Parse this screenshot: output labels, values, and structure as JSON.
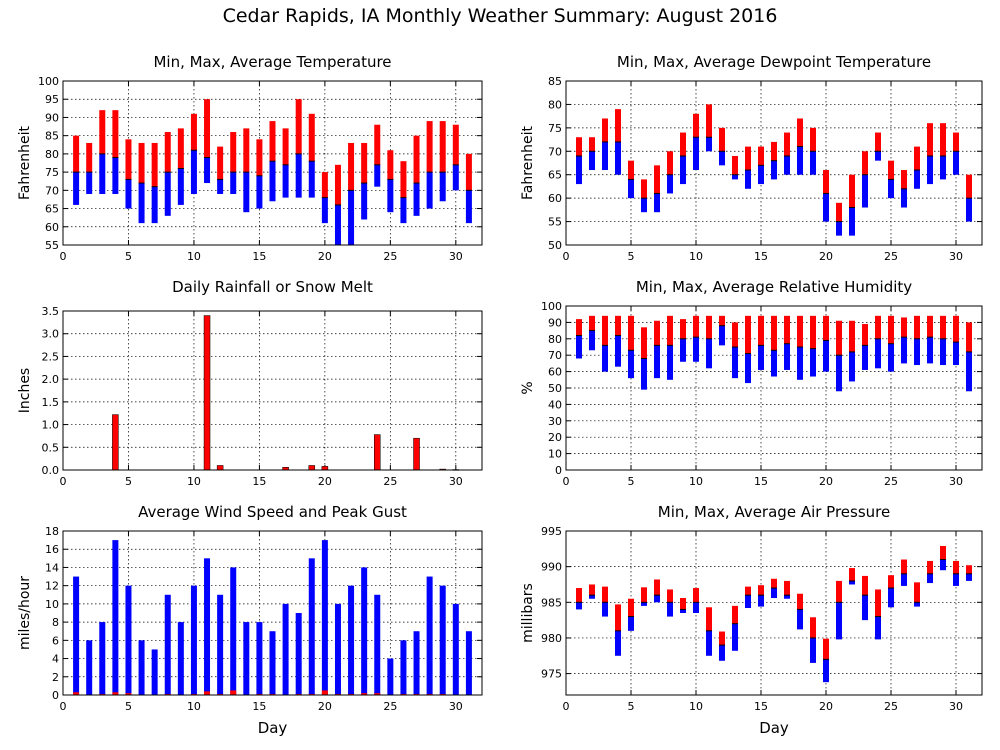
{
  "title": "Cedar Rapids, IA Monthly Weather Summary: August 2016",
  "colors": {
    "max": "#ff0000",
    "min": "#0000ff",
    "grid": "#000000",
    "avg_line": "#000000"
  },
  "chart_data": [
    {
      "type": "bar",
      "title": "Min, Max, Average Temperature",
      "ylabel": "Fahrenheit",
      "xlabel": "",
      "xlim": [
        0,
        32
      ],
      "ylim": [
        55,
        100
      ],
      "xticks": [
        0,
        5,
        10,
        15,
        20,
        25,
        30
      ],
      "yticks": [
        55,
        60,
        65,
        70,
        75,
        80,
        85,
        90,
        95,
        100
      ],
      "grid": true,
      "x": [
        1,
        2,
        3,
        4,
        5,
        6,
        7,
        8,
        9,
        10,
        11,
        12,
        13,
        14,
        15,
        16,
        17,
        18,
        19,
        20,
        21,
        22,
        23,
        24,
        25,
        26,
        27,
        28,
        29,
        30,
        31
      ],
      "series": [
        {
          "values_min": [
            66,
            69,
            69,
            69,
            65,
            61,
            61,
            63,
            66,
            69,
            72,
            69,
            69,
            64,
            65,
            67,
            68,
            68,
            68,
            61,
            55,
            55,
            62,
            71,
            64,
            61,
            63,
            65,
            67,
            70,
            61
          ]
        },
        {
          "values_max": [
            85,
            83,
            92,
            92,
            84,
            83,
            83,
            86,
            87,
            91,
            95,
            82,
            86,
            87,
            84,
            89,
            87,
            95,
            91,
            75,
            77,
            83,
            83,
            88,
            81,
            78,
            85,
            89,
            89,
            88,
            80
          ]
        },
        {
          "values_avg": [
            75,
            75,
            80,
            79,
            73,
            72,
            71,
            75,
            76,
            81,
            79,
            73,
            75,
            75,
            74,
            78,
            77,
            80,
            78,
            68,
            66,
            70,
            72,
            77,
            73,
            68,
            72,
            75,
            75,
            77,
            70
          ]
        }
      ]
    },
    {
      "type": "bar",
      "title": "Min, Max, Average Dewpoint Temperature",
      "ylabel": "Fahrenheit",
      "xlabel": "",
      "xlim": [
        0,
        32
      ],
      "ylim": [
        50,
        85
      ],
      "xticks": [
        0,
        5,
        10,
        15,
        20,
        25,
        30
      ],
      "yticks": [
        50,
        55,
        60,
        65,
        70,
        75,
        80,
        85
      ],
      "grid": true,
      "x": [
        1,
        2,
        3,
        4,
        5,
        6,
        7,
        8,
        9,
        10,
        11,
        12,
        13,
        14,
        15,
        16,
        17,
        18,
        19,
        20,
        21,
        22,
        23,
        24,
        25,
        26,
        27,
        28,
        29,
        30,
        31
      ],
      "series": [
        {
          "values_min": [
            63,
            66,
            66,
            65,
            60,
            57,
            57,
            61,
            63,
            66,
            70,
            67,
            64,
            62,
            63,
            64,
            65,
            65,
            65,
            55,
            52,
            52,
            58,
            68,
            60,
            58,
            62,
            63,
            64,
            65,
            55
          ]
        },
        {
          "values_max": [
            73,
            73,
            77,
            79,
            68,
            64,
            67,
            70,
            74,
            78,
            80,
            75,
            69,
            71,
            71,
            72,
            74,
            77,
            75,
            66,
            59,
            65,
            70,
            74,
            68,
            66,
            71,
            76,
            76,
            74,
            65
          ]
        },
        {
          "values_avg": [
            69,
            70,
            72,
            72,
            64,
            60,
            61,
            65,
            69,
            73,
            73,
            70,
            65,
            66,
            67,
            68,
            69,
            71,
            70,
            61,
            55,
            58,
            65,
            70,
            64,
            62,
            66,
            69,
            69,
            70,
            60
          ]
        }
      ]
    },
    {
      "type": "bar",
      "title": "Daily Rainfall or Snow Melt",
      "ylabel": "Inches",
      "xlabel": "",
      "xlim": [
        0,
        32
      ],
      "ylim": [
        0,
        3.5
      ],
      "xticks": [
        0,
        5,
        10,
        15,
        20,
        25,
        30
      ],
      "yticks": [
        0.0,
        0.5,
        1.0,
        1.5,
        2.0,
        2.5,
        3.0,
        3.5
      ],
      "grid": true,
      "x": [
        1,
        2,
        3,
        4,
        5,
        6,
        7,
        8,
        9,
        10,
        11,
        12,
        13,
        14,
        15,
        16,
        17,
        18,
        19,
        20,
        21,
        22,
        23,
        24,
        25,
        26,
        27,
        28,
        29,
        30,
        31
      ],
      "values": [
        0,
        0,
        0,
        1.22,
        0,
        0,
        0,
        0,
        0,
        0,
        3.4,
        0.1,
        0,
        0,
        0,
        0,
        0.06,
        0,
        0.1,
        0.08,
        0,
        0,
        0,
        0.78,
        0,
        0,
        0.7,
        0,
        0.02,
        0.01,
        0
      ]
    },
    {
      "type": "bar",
      "title": "Min, Max, Average Relative Humidity",
      "ylabel": "%",
      "xlabel": "",
      "xlim": [
        0,
        32
      ],
      "ylim": [
        0,
        100
      ],
      "xticks": [
        0,
        5,
        10,
        15,
        20,
        25,
        30
      ],
      "yticks": [
        0,
        10,
        20,
        30,
        40,
        50,
        60,
        70,
        80,
        90,
        100
      ],
      "grid": true,
      "x": [
        1,
        2,
        3,
        4,
        5,
        6,
        7,
        8,
        9,
        10,
        11,
        12,
        13,
        14,
        15,
        16,
        17,
        18,
        19,
        20,
        21,
        22,
        23,
        24,
        25,
        26,
        27,
        28,
        29,
        30,
        31
      ],
      "series": [
        {
          "values_min": [
            68,
            73,
            60,
            63,
            56,
            49,
            56,
            55,
            66,
            66,
            62,
            76,
            56,
            53,
            61,
            57,
            61,
            55,
            57,
            60,
            48,
            54,
            61,
            62,
            60,
            65,
            64,
            65,
            64,
            64,
            48
          ]
        },
        {
          "values_max": [
            92,
            94,
            94,
            94,
            94,
            87,
            91,
            94,
            92,
            94,
            94,
            94,
            90,
            94,
            94,
            94,
            94,
            94,
            94,
            94,
            91,
            91,
            89,
            94,
            94,
            93,
            94,
            94,
            94,
            94,
            90
          ]
        },
        {
          "values_avg": [
            82,
            85,
            76,
            82,
            73,
            68,
            76,
            76,
            80,
            81,
            80,
            88,
            75,
            71,
            76,
            73,
            77,
            75,
            74,
            79,
            70,
            72,
            76,
            80,
            77,
            81,
            80,
            81,
            80,
            78,
            72
          ]
        }
      ]
    },
    {
      "type": "bar",
      "title": "Average Wind Speed and Peak Gust",
      "ylabel": "miles/hour",
      "xlabel": "Day",
      "xlim": [
        0,
        32
      ],
      "ylim": [
        0,
        18
      ],
      "xticks": [
        0,
        5,
        10,
        15,
        20,
        25,
        30
      ],
      "yticks": [
        0,
        2,
        4,
        6,
        8,
        10,
        12,
        14,
        16,
        18
      ],
      "grid": true,
      "x": [
        1,
        2,
        3,
        4,
        5,
        6,
        7,
        8,
        9,
        10,
        11,
        12,
        13,
        14,
        15,
        16,
        17,
        18,
        19,
        20,
        21,
        22,
        23,
        24,
        25,
        26,
        27,
        28,
        29,
        30,
        31
      ],
      "series": [
        {
          "name": "peak",
          "values": [
            13,
            6,
            8,
            17,
            12,
            6,
            5,
            11,
            8,
            12,
            15,
            11,
            14,
            8,
            8,
            7,
            10,
            9,
            15,
            17,
            10,
            12,
            14,
            11,
            4,
            6,
            7,
            13,
            12,
            10,
            7
          ]
        },
        {
          "name": "avg",
          "values": [
            0.3,
            0,
            0.1,
            0.3,
            0.2,
            0,
            0,
            0.1,
            0,
            0.1,
            0.4,
            0.1,
            0.5,
            0,
            0.1,
            0.1,
            0,
            0.1,
            0.1,
            0.5,
            0.1,
            0.1,
            0.2,
            0.2,
            0,
            0.1,
            0.1,
            0.1,
            0.1,
            0,
            0
          ]
        }
      ]
    },
    {
      "type": "bar",
      "title": "Min, Max, Average Air Pressure",
      "ylabel": "millibars",
      "xlabel": "Day",
      "xlim": [
        0,
        32
      ],
      "ylim": [
        972,
        995
      ],
      "xticks": [
        0,
        5,
        10,
        15,
        20,
        25,
        30
      ],
      "yticks": [
        975,
        980,
        985,
        990,
        995
      ],
      "grid": true,
      "x": [
        1,
        2,
        3,
        4,
        5,
        6,
        7,
        8,
        9,
        10,
        11,
        12,
        13,
        14,
        15,
        16,
        17,
        18,
        19,
        20,
        21,
        22,
        23,
        24,
        25,
        26,
        27,
        28,
        29,
        30,
        31
      ],
      "series": [
        {
          "values_min": [
            984,
            985.5,
            983,
            977.5,
            981,
            984.5,
            985,
            983,
            983.5,
            983.5,
            977.5,
            976.8,
            978.2,
            984.2,
            984.4,
            985.6,
            985.5,
            981.2,
            976.5,
            973.8,
            979.8,
            987.5,
            982.5,
            979.8,
            984.3,
            987.3,
            984.4,
            987.7,
            989.5,
            987.3,
            988
          ]
        },
        {
          "values_max": [
            987,
            987.5,
            987.2,
            984.7,
            985.5,
            987.1,
            988.2,
            986.8,
            985.6,
            987,
            984.3,
            980.9,
            984.5,
            987.2,
            987.4,
            988.3,
            988,
            986.2,
            982.9,
            979.9,
            988,
            989.8,
            988.7,
            986.8,
            988.8,
            991,
            987.8,
            990.8,
            992.9,
            990.8,
            990.2
          ]
        },
        {
          "values_avg": [
            985,
            986,
            985,
            981,
            983,
            985,
            986,
            985,
            984,
            985,
            981,
            979,
            982,
            986,
            986,
            987,
            986,
            984,
            980,
            977,
            985,
            988,
            986,
            983,
            987,
            989,
            985,
            989,
            991,
            989,
            989
          ]
        }
      ]
    }
  ]
}
